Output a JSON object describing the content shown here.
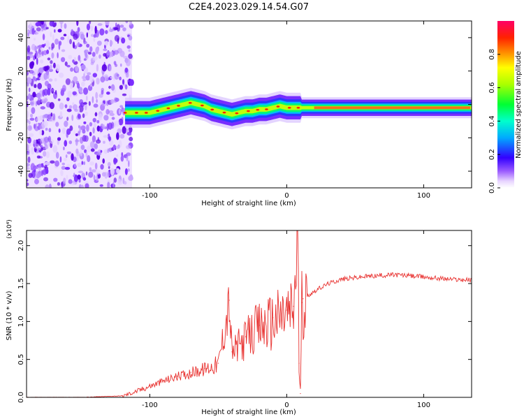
{
  "figure": {
    "title": "C2E4.2023.029.14.54.G07"
  },
  "chart_data": [
    {
      "type": "heatmap",
      "xlabel": "Height of straight line (km)",
      "ylabel": "Frequency (Hz)",
      "xlim": [
        -190,
        135
      ],
      "ylim": [
        -50,
        50
      ],
      "xticks": [
        -100,
        0,
        100
      ],
      "xtick_labels": [
        "-100",
        "0",
        "100"
      ],
      "yticks": [
        -40,
        -20,
        0,
        20,
        40
      ],
      "ytick_labels": [
        "-40",
        "-20",
        "0",
        "20",
        "40"
      ],
      "noise_region_x": [
        -190,
        -113
      ],
      "ridge": {
        "x": [
          -118,
          -110,
          -100,
          -90,
          -80,
          -70,
          -60,
          -55,
          -50,
          -45,
          -40,
          -35,
          -30,
          -25,
          -20,
          -15,
          -10,
          -5,
          0,
          5,
          10,
          20,
          40,
          60,
          80,
          100,
          120,
          135
        ],
        "freq": [
          -5,
          -5,
          -5,
          -3,
          -1,
          1,
          -1,
          -3,
          -4,
          -5,
          -6,
          -5,
          -4,
          -4,
          -3,
          -3,
          -2,
          -1,
          -2,
          -2,
          -2,
          -2,
          -2,
          -2,
          -2,
          -2,
          -2,
          -2
        ]
      },
      "grid": false,
      "colorbar": {
        "label": "Normalized spectral amplitude",
        "ticks": [
          0.0,
          0.2,
          0.4,
          0.6,
          0.8
        ],
        "tick_labels": [
          "0.0",
          "0.2",
          "0.4",
          "0.6",
          "0.8"
        ],
        "range": [
          0,
          1
        ]
      }
    },
    {
      "type": "line",
      "xlabel": "Height of straight line (km)",
      "ylabel": "SNR (10 * v/v)",
      "scale_label": "(x10⁴)",
      "xlim": [
        -190,
        135
      ],
      "ylim": [
        0,
        2.2
      ],
      "xticks": [
        -100,
        0,
        100
      ],
      "xtick_labels": [
        "-100",
        "0",
        "100"
      ],
      "yticks": [
        0.0,
        0.5,
        1.0,
        1.5,
        2.0
      ],
      "ytick_labels": [
        "0.0",
        "0.5",
        "1.0",
        "1.5",
        "2.0"
      ],
      "grid": false,
      "series": [
        {
          "color": "#e8312f",
          "x": [
            -190,
            -150,
            -120,
            -110,
            -100,
            -90,
            -80,
            -70,
            -60,
            -50,
            -42,
            -40,
            -30,
            -20,
            -10,
            0,
            5,
            8,
            9,
            10,
            11,
            12,
            20,
            30,
            40,
            60,
            80,
            100,
            120,
            135
          ],
          "y": [
            0.0,
            0.0,
            0.02,
            0.08,
            0.15,
            0.22,
            0.28,
            0.33,
            0.38,
            0.45,
            1.28,
            0.6,
            0.8,
            0.95,
            1.05,
            1.15,
            1.2,
            2.2,
            0.45,
            0.05,
            1.25,
            1.3,
            1.4,
            1.5,
            1.56,
            1.6,
            1.62,
            1.59,
            1.56,
            1.55
          ]
        }
      ]
    }
  ]
}
